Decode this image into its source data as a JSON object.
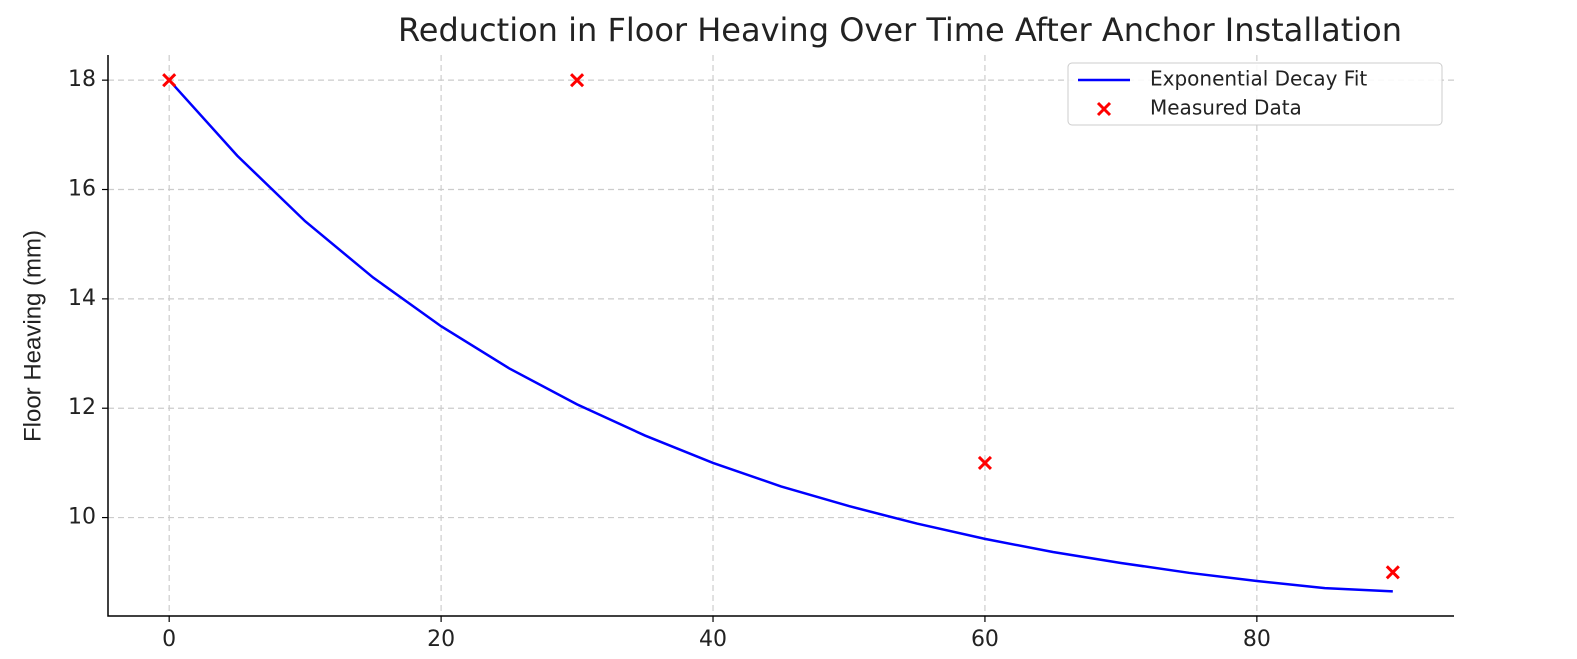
{
  "chart_data": {
    "type": "line",
    "title": "Reduction in Floor Heaving Over Time After Anchor Installation",
    "y_label": "Floor Heaving (mm)",
    "series": [
      {
        "name": "Exponential Decay Fit",
        "color": "#0000ff",
        "marker": "none",
        "x": [
          0,
          5,
          10,
          15,
          20,
          25,
          30,
          35,
          40,
          45,
          50,
          55,
          60,
          65,
          70,
          75,
          80,
          85,
          90
        ],
        "values": [
          18.0,
          16.62,
          15.42,
          14.39,
          13.5,
          12.73,
          12.07,
          11.5,
          11.0,
          10.57,
          10.21,
          9.89,
          9.61,
          9.37,
          9.17,
          8.99,
          8.84,
          8.71,
          8.65
        ]
      },
      {
        "name": "Measured Data",
        "color": "#ff0000",
        "marker": "x",
        "x": [
          0,
          30,
          60,
          90
        ],
        "values": [
          18,
          18,
          11,
          9
        ]
      }
    ],
    "xlim": [
      -4.5,
      94.5
    ],
    "xticks": [
      0,
      20,
      40,
      60,
      80
    ],
    "ylim": [
      8.2,
      18.46
    ],
    "yticks": [
      10,
      12,
      14,
      16,
      18
    ],
    "grid": true,
    "legend": "upper right"
  }
}
